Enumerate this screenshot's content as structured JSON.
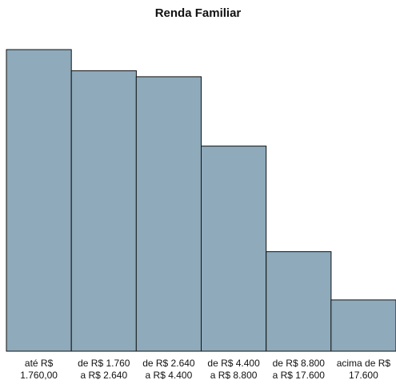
{
  "chart_data": {
    "type": "bar",
    "title": "Renda Familiar",
    "xlabel": "",
    "ylabel": "",
    "categories": [
      [
        "até R$",
        "1.760,00"
      ],
      [
        "de R$ 1.760",
        "a R$ 2.640"
      ],
      [
        "de R$ 2.640",
        "a R$ 4.400"
      ],
      [
        "de R$ 4.400",
        "a R$ 8.800"
      ],
      [
        "de R$ 8.800",
        "a R$ 17.600"
      ],
      [
        "acima de R$",
        "17.600"
      ]
    ],
    "values": [
      100,
      93,
      91,
      68,
      33,
      17
    ],
    "ylim": [
      0,
      100
    ],
    "grid": false,
    "colors": {
      "bar": "#8eaabb",
      "outline": "#111111"
    }
  }
}
